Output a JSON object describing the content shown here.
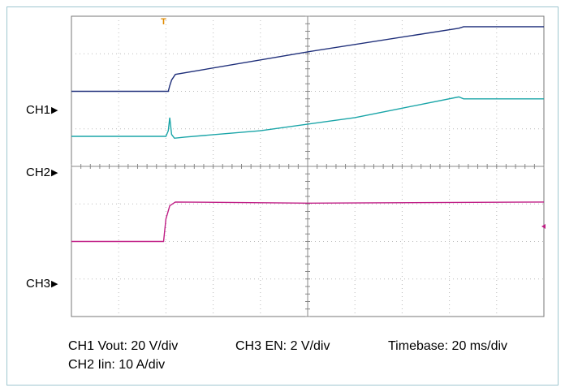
{
  "chart_data": {
    "type": "line",
    "x_unit_note": "divisions",
    "xlim": [
      0,
      10
    ],
    "ylim": [
      0,
      8
    ],
    "grid": true,
    "trigger_marker": "T",
    "channels": [
      {
        "name": "CH1",
        "color": "#1f2f7a",
        "marker_label": "CH1",
        "x": [
          0,
          2.05,
          2.08,
          2.12,
          2.2,
          5.0,
          8.2,
          8.3,
          10
        ],
        "y": [
          6.0,
          6.0,
          6.15,
          6.3,
          6.45,
          7.05,
          7.68,
          7.72,
          7.72
        ]
      },
      {
        "name": "CH2",
        "color": "#1aa5a8",
        "marker_label": "CH2",
        "x": [
          0,
          2.0,
          2.05,
          2.08,
          2.12,
          2.18,
          2.4,
          4.0,
          6.0,
          7.0,
          8.2,
          8.3,
          10
        ],
        "y": [
          4.8,
          4.8,
          4.95,
          5.3,
          4.85,
          4.75,
          4.78,
          4.95,
          5.3,
          5.55,
          5.85,
          5.8,
          5.8
        ]
      },
      {
        "name": "CH3",
        "color": "#c01f86",
        "marker_label": "CH3",
        "x": [
          0,
          1.95,
          2.0,
          2.08,
          2.2,
          5.0,
          10
        ],
        "y": [
          2.0,
          2.0,
          2.6,
          2.95,
          3.05,
          3.02,
          3.05
        ]
      }
    ]
  },
  "labels": {
    "ch1_setting": "CH1 Vout: 20 V/div",
    "ch2_setting": "CH2 Iin: 10 A/div",
    "ch3_setting": "CH3 EN: 2 V/div",
    "timebase": "Timebase: 20 ms/div"
  }
}
